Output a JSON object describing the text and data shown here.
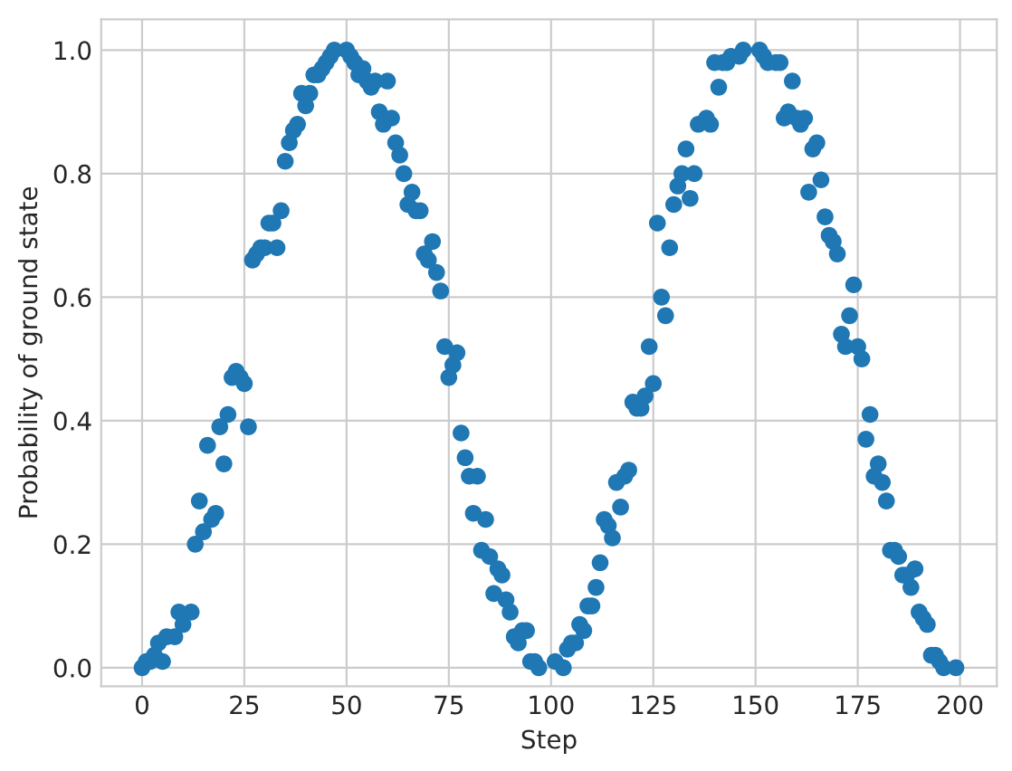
{
  "chart_data": {
    "type": "scatter",
    "xlabel": "Step",
    "ylabel": "Probability of ground state",
    "xlim": [
      -10,
      209
    ],
    "ylim": [
      -0.03,
      1.05
    ],
    "xticks": [
      0,
      25,
      50,
      75,
      100,
      125,
      150,
      175,
      200
    ],
    "yticks": [
      {
        "value": 0,
        "label": "0.0"
      },
      {
        "value": 0.2,
        "label": "0.2"
      },
      {
        "value": 0.4,
        "label": "0.4"
      },
      {
        "value": 0.6,
        "label": "0.6"
      },
      {
        "value": 0.8,
        "label": "0.8"
      },
      {
        "value": 1,
        "label": "1.0"
      }
    ],
    "grid": true,
    "marker": "circle",
    "series": [
      {
        "color": "#1f77b4",
        "x": [
          0,
          1,
          2,
          3,
          4,
          5,
          6,
          8,
          9,
          10,
          12,
          13,
          14,
          15,
          16,
          17,
          18,
          19,
          20,
          21,
          22,
          23,
          24,
          25,
          26,
          27,
          28,
          29,
          30,
          31,
          32,
          33,
          34,
          35,
          36,
          37,
          38,
          39,
          40,
          41,
          42,
          43,
          44,
          45,
          46,
          47,
          50,
          51,
          52,
          53,
          54,
          55,
          56,
          57,
          58,
          59,
          60,
          61,
          62,
          63,
          64,
          65,
          66,
          67,
          68,
          69,
          70,
          71,
          72,
          73,
          74,
          75,
          76,
          77,
          78,
          79,
          80,
          81,
          82,
          83,
          84,
          85,
          86,
          87,
          88,
          89,
          90,
          91,
          92,
          93,
          94,
          95,
          96,
          97,
          101,
          103,
          104,
          105,
          106,
          107,
          108,
          109,
          110,
          111,
          112,
          113,
          114,
          115,
          116,
          117,
          118,
          119,
          120,
          121,
          122,
          123,
          124,
          125,
          126,
          127,
          128,
          129,
          130,
          131,
          132,
          133,
          134,
          135,
          136,
          138,
          139,
          140,
          141,
          142,
          143,
          144,
          146,
          147,
          151,
          152,
          153,
          155,
          156,
          157,
          158,
          159,
          160,
          161,
          162,
          163,
          164,
          165,
          166,
          167,
          168,
          169,
          170,
          171,
          172,
          173,
          174,
          175,
          176,
          177,
          178,
          179,
          180,
          181,
          182,
          183,
          184,
          185,
          186,
          187,
          188,
          189,
          190,
          191,
          192,
          193,
          194,
          195,
          196,
          199
        ],
        "values": [
          0.0,
          0.01,
          0.01,
          0.02,
          0.04,
          0.01,
          0.05,
          0.05,
          0.09,
          0.07,
          0.09,
          0.2,
          0.27,
          0.22,
          0.36,
          0.24,
          0.25,
          0.39,
          0.33,
          0.41,
          0.47,
          0.48,
          0.47,
          0.46,
          0.39,
          0.66,
          0.67,
          0.68,
          0.68,
          0.72,
          0.72,
          0.68,
          0.74,
          0.82,
          0.85,
          0.87,
          0.88,
          0.93,
          0.91,
          0.93,
          0.96,
          0.96,
          0.97,
          0.98,
          0.99,
          1.0,
          1.0,
          0.99,
          0.98,
          0.96,
          0.97,
          0.95,
          0.94,
          0.95,
          0.9,
          0.88,
          0.95,
          0.89,
          0.85,
          0.83,
          0.8,
          0.75,
          0.77,
          0.74,
          0.74,
          0.67,
          0.66,
          0.69,
          0.64,
          0.61,
          0.52,
          0.47,
          0.49,
          0.51,
          0.38,
          0.34,
          0.31,
          0.25,
          0.31,
          0.19,
          0.24,
          0.18,
          0.12,
          0.16,
          0.15,
          0.11,
          0.09,
          0.05,
          0.04,
          0.06,
          0.06,
          0.01,
          0.01,
          0.0,
          0.01,
          0.0,
          0.03,
          0.04,
          0.04,
          0.07,
          0.06,
          0.1,
          0.1,
          0.13,
          0.17,
          0.24,
          0.23,
          0.21,
          0.3,
          0.26,
          0.31,
          0.32,
          0.43,
          0.42,
          0.42,
          0.44,
          0.52,
          0.46,
          0.72,
          0.6,
          0.57,
          0.68,
          0.75,
          0.78,
          0.8,
          0.84,
          0.76,
          0.8,
          0.88,
          0.89,
          0.88,
          0.98,
          0.94,
          0.98,
          0.98,
          0.99,
          0.99,
          1.0,
          1.0,
          0.99,
          0.98,
          0.98,
          0.98,
          0.89,
          0.9,
          0.95,
          0.89,
          0.88,
          0.89,
          0.77,
          0.84,
          0.85,
          0.79,
          0.73,
          0.7,
          0.69,
          0.67,
          0.54,
          0.52,
          0.57,
          0.62,
          0.52,
          0.5,
          0.37,
          0.41,
          0.31,
          0.33,
          0.3,
          0.27,
          0.19,
          0.19,
          0.18,
          0.15,
          0.15,
          0.13,
          0.16,
          0.09,
          0.08,
          0.07,
          0.02,
          0.02,
          0.01,
          0.0,
          0.0
        ]
      }
    ]
  }
}
